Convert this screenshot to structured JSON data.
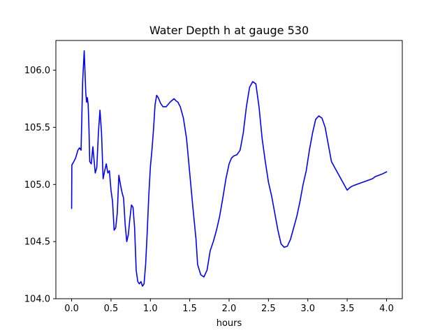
{
  "chart_data": {
    "type": "line",
    "title": "Water Depth h at gauge 530",
    "xlabel": "hours",
    "ylabel": "",
    "xlim": [
      -0.2,
      4.2
    ],
    "ylim": [
      104.0,
      106.26
    ],
    "xticks": [
      0.0,
      0.5,
      1.0,
      1.5,
      2.0,
      2.5,
      3.0,
      3.5,
      4.0
    ],
    "xtick_labels": [
      "0.0",
      "0.5",
      "1.0",
      "1.5",
      "2.0",
      "2.5",
      "3.0",
      "3.5",
      "4.0"
    ],
    "yticks": [
      104.0,
      104.5,
      105.0,
      105.5,
      106.0
    ],
    "ytick_labels": [
      "104.0",
      "104.5",
      "105.0",
      "105.5",
      "106.0"
    ],
    "grid": false,
    "series": [
      {
        "color": "#0000ff",
        "x": [
          0.0,
          0.003,
          0.02,
          0.05,
          0.08,
          0.1,
          0.12,
          0.14,
          0.16,
          0.18,
          0.19,
          0.2,
          0.21,
          0.22,
          0.23,
          0.25,
          0.27,
          0.3,
          0.32,
          0.34,
          0.36,
          0.38,
          0.4,
          0.42,
          0.44,
          0.46,
          0.48,
          0.5,
          0.52,
          0.54,
          0.56,
          0.58,
          0.6,
          0.62,
          0.64,
          0.66,
          0.68,
          0.7,
          0.72,
          0.74,
          0.76,
          0.78,
          0.8,
          0.82,
          0.84,
          0.86,
          0.88,
          0.9,
          0.92,
          0.94,
          0.96,
          0.98,
          1.0,
          1.02,
          1.04,
          1.06,
          1.08,
          1.1,
          1.13,
          1.16,
          1.2,
          1.25,
          1.3,
          1.33,
          1.35,
          1.38,
          1.42,
          1.46,
          1.5,
          1.54,
          1.58,
          1.6,
          1.64,
          1.68,
          1.72,
          1.76,
          1.8,
          1.84,
          1.88,
          1.92,
          1.96,
          2.0,
          2.03,
          2.06,
          2.1,
          2.14,
          2.18,
          2.22,
          2.26,
          2.3,
          2.34,
          2.38,
          2.42,
          2.46,
          2.5,
          2.54,
          2.58,
          2.62,
          2.66,
          2.7,
          2.74,
          2.78,
          2.82,
          2.86,
          2.9,
          2.94,
          2.98,
          3.02,
          3.06,
          3.1,
          3.14,
          3.18,
          3.22,
          3.26,
          3.3,
          3.34,
          3.38,
          3.42,
          3.46,
          3.5,
          3.53,
          3.55,
          3.58,
          3.62,
          3.66,
          3.7,
          3.74,
          3.78,
          3.82,
          3.84,
          3.86,
          3.9,
          3.94,
          3.97,
          4.0
        ],
        "values": [
          104.79,
          105.17,
          105.19,
          105.23,
          105.3,
          105.32,
          105.3,
          105.9,
          106.17,
          105.8,
          105.72,
          105.76,
          105.7,
          105.5,
          105.2,
          105.18,
          105.33,
          105.1,
          105.15,
          105.45,
          105.65,
          105.45,
          105.05,
          105.12,
          105.18,
          105.1,
          105.12,
          104.95,
          104.85,
          104.6,
          104.62,
          104.75,
          105.08,
          105.0,
          104.93,
          104.88,
          104.65,
          104.5,
          104.56,
          104.7,
          104.82,
          104.8,
          104.62,
          104.25,
          104.15,
          104.13,
          104.15,
          104.11,
          104.13,
          104.3,
          104.58,
          104.9,
          105.15,
          105.3,
          105.48,
          105.7,
          105.78,
          105.76,
          105.71,
          105.68,
          105.68,
          105.72,
          105.75,
          105.73,
          105.72,
          105.68,
          105.58,
          105.4,
          105.1,
          104.8,
          104.52,
          104.3,
          104.21,
          104.19,
          104.25,
          104.42,
          104.5,
          104.6,
          104.72,
          104.88,
          105.05,
          105.18,
          105.23,
          105.25,
          105.26,
          105.3,
          105.45,
          105.68,
          105.85,
          105.9,
          105.88,
          105.68,
          105.4,
          105.2,
          105.02,
          104.9,
          104.75,
          104.6,
          104.48,
          104.45,
          104.46,
          104.52,
          104.62,
          104.72,
          104.85,
          105.0,
          105.12,
          105.3,
          105.45,
          105.57,
          105.6,
          105.58,
          105.5,
          105.35,
          105.2,
          105.15,
          105.1,
          105.05,
          105.0,
          104.95,
          104.97,
          104.98,
          104.99,
          105.0,
          105.01,
          105.02,
          105.03,
          105.04,
          105.05,
          105.06,
          105.07,
          105.08,
          105.09,
          105.1,
          105.11
        ]
      }
    ]
  }
}
